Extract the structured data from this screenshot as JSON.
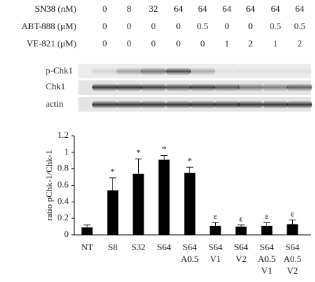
{
  "treatments": {
    "rows": [
      {
        "label": "SN38 (nM)",
        "values": [
          "0",
          "8",
          "32",
          "64",
          "64",
          "64",
          "64",
          "64",
          "64"
        ]
      },
      {
        "label": "ABT-888 (μM)",
        "values": [
          "0",
          "0",
          "0",
          "0",
          "0.5",
          "0",
          "0",
          "0.5",
          "0.5"
        ]
      },
      {
        "label": "VE-821 (μM)",
        "values": [
          "0",
          "0",
          "0",
          "0",
          "0",
          "1",
          "2",
          "1",
          "2"
        ]
      }
    ]
  },
  "blot": {
    "labels": [
      "p-Chk1",
      "Chk1",
      "actin"
    ]
  },
  "chart_data": {
    "type": "bar",
    "y_label": "ratio pChk-1/Chk-1",
    "categories": [
      [
        "NT"
      ],
      [
        "S8"
      ],
      [
        "S32"
      ],
      [
        "S64"
      ],
      [
        "S64",
        "A0.5"
      ],
      [
        "S64",
        "V1"
      ],
      [
        "S64",
        "V2"
      ],
      [
        "S64",
        "A0.5",
        "V1"
      ],
      [
        "S64",
        "A0.5",
        "V2"
      ]
    ],
    "values": [
      0.09,
      0.54,
      0.74,
      0.91,
      0.75,
      0.11,
      0.1,
      0.11,
      0.13
    ],
    "errors": [
      0.03,
      0.15,
      0.18,
      0.05,
      0.07,
      0.04,
      0.02,
      0.04,
      0.05
    ],
    "annotations": [
      null,
      "*",
      "*",
      "*",
      "*",
      "ε",
      "ε",
      "ε",
      "ε"
    ],
    "color": "#000000",
    "ylim": [
      0,
      1.2
    ],
    "yticks": [
      0,
      0.2,
      0.4,
      0.6,
      0.8,
      1,
      1.2
    ]
  }
}
